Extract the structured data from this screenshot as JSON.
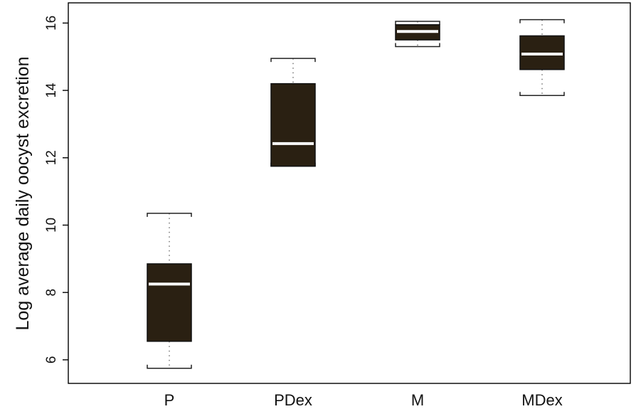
{
  "chart_data": {
    "type": "box",
    "title": "",
    "xlabel": "",
    "ylabel": "Log average daily oocyst excretion",
    "ylim": [
      5.3,
      16.6
    ],
    "yticks": [
      6,
      8,
      10,
      12,
      14,
      16
    ],
    "categories": [
      "P",
      "PDex",
      "M",
      "MDex"
    ],
    "boxes": [
      {
        "category": "P",
        "whisker_low": 5.75,
        "q1": 6.55,
        "median": 8.25,
        "q3": 8.85,
        "whisker_high": 10.35
      },
      {
        "category": "PDex",
        "whisker_low": 11.75,
        "q1": 11.75,
        "median": 12.42,
        "q3": 14.2,
        "whisker_high": 14.95
      },
      {
        "category": "M",
        "whisker_low": 15.3,
        "q1": 15.5,
        "median": 15.75,
        "q3": 15.95,
        "whisker_high": 16.05
      },
      {
        "category": "MDex",
        "whisker_low": 13.85,
        "q1": 14.62,
        "median": 15.08,
        "q3": 15.62,
        "whisker_high": 16.1
      }
    ],
    "colors": {
      "box_fill": "#2a2012",
      "median_line": "#ffffff",
      "whisker": "#333333",
      "axis": "#000000"
    },
    "grid": false,
    "legend": "none"
  }
}
